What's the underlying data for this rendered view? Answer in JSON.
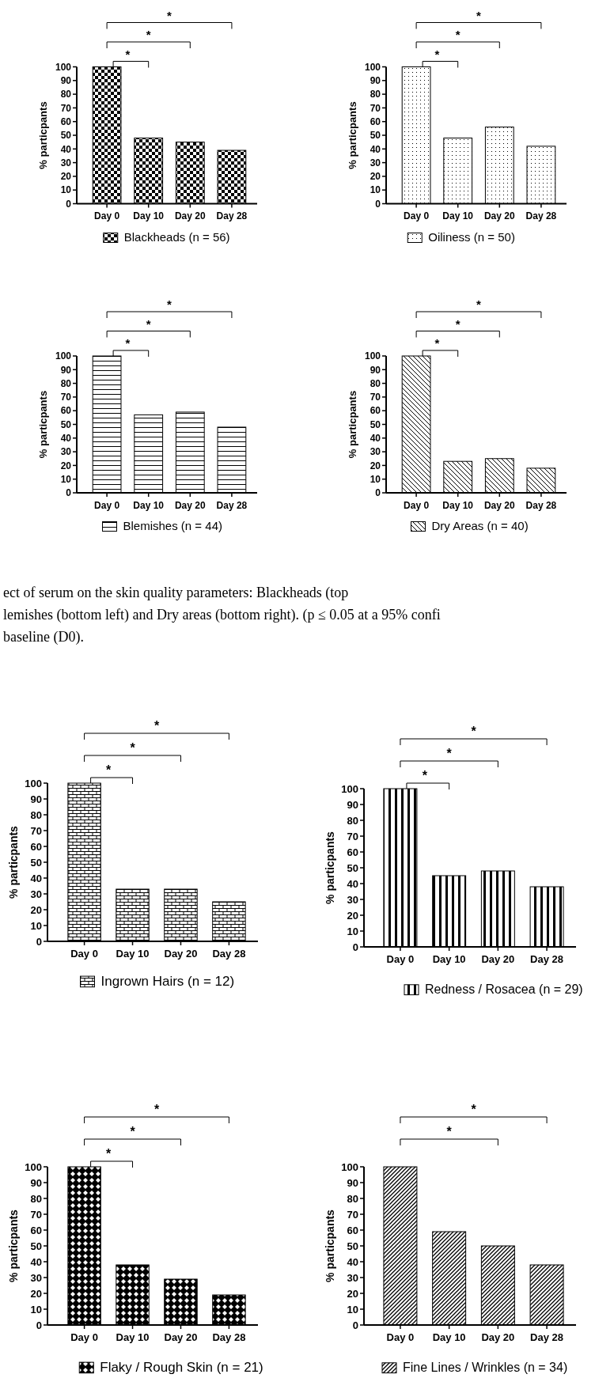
{
  "chart_data": [
    {
      "type": "bar",
      "ylabel": "% particpants",
      "categories": [
        "Day 0",
        "Day 10",
        "Day 20",
        "Day 28"
      ],
      "series": [
        {
          "name": "Blackheads (n = 56)",
          "color": "#000000",
          "values": [
            100,
            48,
            45,
            39
          ]
        }
      ],
      "ylim": [
        0,
        100
      ],
      "yticks": [
        0,
        10,
        20,
        30,
        40,
        50,
        60,
        70,
        80,
        90,
        100
      ],
      "legend": "bottom",
      "annotations": [
        "*",
        "*",
        "*"
      ]
    },
    {
      "type": "bar",
      "ylabel": "% particpants",
      "categories": [
        "Day 0",
        "Day 10",
        "Day 20",
        "Day 28"
      ],
      "series": [
        {
          "name": "Oiliness (n = 50)",
          "color": "#000000",
          "values": [
            100,
            48,
            56,
            42
          ]
        }
      ],
      "ylim": [
        0,
        100
      ],
      "yticks": [
        0,
        10,
        20,
        30,
        40,
        50,
        60,
        70,
        80,
        90,
        100
      ],
      "legend": "bottom",
      "annotations": [
        "*",
        "*",
        "*"
      ]
    },
    {
      "type": "bar",
      "ylabel": "% particpants",
      "categories": [
        "Day 0",
        "Day 10",
        "Day 20",
        "Day 28"
      ],
      "series": [
        {
          "name": "Blemishes (n = 44)",
          "color": "#000000",
          "values": [
            100,
            57,
            59,
            48
          ]
        }
      ],
      "ylim": [
        0,
        100
      ],
      "yticks": [
        0,
        10,
        20,
        30,
        40,
        50,
        60,
        70,
        80,
        90,
        100
      ],
      "legend": "bottom",
      "annotations": [
        "*",
        "*",
        "*"
      ]
    },
    {
      "type": "bar",
      "ylabel": "% particpants",
      "categories": [
        "Day 0",
        "Day 10",
        "Day 20",
        "Day 28"
      ],
      "series": [
        {
          "name": "Dry Areas (n = 40)",
          "color": "#000000",
          "values": [
            100,
            23,
            25,
            18
          ]
        }
      ],
      "ylim": [
        0,
        100
      ],
      "yticks": [
        0,
        10,
        20,
        30,
        40,
        50,
        60,
        70,
        80,
        90,
        100
      ],
      "legend": "bottom",
      "annotations": [
        "*",
        "*",
        "*"
      ]
    },
    {
      "type": "other",
      "annotations": [
        "ect of serum on the skin quality parameters: Blackheads (top",
        "lemishes (bottom left) and Dry areas (bottom right). (p ≤ 0.05 at a 95% confi",
        "baseline (D0)."
      ]
    },
    {
      "type": "bar",
      "ylabel": "% particpants",
      "categories": [
        "Day 0",
        "Day 10",
        "Day 20",
        "Day 28"
      ],
      "series": [
        {
          "name": "Ingrown Hairs (n = 12)",
          "color": "#000000",
          "values": [
            100,
            33,
            33,
            25
          ]
        }
      ],
      "ylim": [
        0,
        100
      ],
      "yticks": [
        0,
        10,
        20,
        30,
        40,
        50,
        60,
        70,
        80,
        90,
        100
      ],
      "legend": "bottom",
      "annotations": [
        "*",
        "*",
        "*"
      ]
    },
    {
      "type": "bar",
      "ylabel": "% particpants",
      "categories": [
        "Day 0",
        "Day 10",
        "Day 20",
        "Day 28"
      ],
      "series": [
        {
          "name": "Redness / Rosacea (n = 29)",
          "color": "#000000",
          "values": [
            100,
            45,
            48,
            38
          ]
        }
      ],
      "ylim": [
        0,
        100
      ],
      "yticks": [
        0,
        10,
        20,
        30,
        40,
        50,
        60,
        70,
        80,
        90,
        100
      ],
      "legend": "bottom",
      "annotations": [
        "*",
        "*",
        "*"
      ]
    },
    {
      "type": "bar",
      "ylabel": "% particpants",
      "categories": [
        "Day 0",
        "Day 10",
        "Day 20",
        "Day 28"
      ],
      "series": [
        {
          "name": "Flaky / Rough Skin (n = 21)",
          "color": "#000000",
          "values": [
            100,
            38,
            29,
            19
          ]
        }
      ],
      "ylim": [
        0,
        100
      ],
      "yticks": [
        0,
        10,
        20,
        30,
        40,
        50,
        60,
        70,
        80,
        90,
        100
      ],
      "legend": "bottom",
      "annotations": [
        "*",
        "*",
        "*"
      ]
    },
    {
      "type": "bar",
      "ylabel": "% particpants",
      "categories": [
        "Day 0",
        "Day 10",
        "Day 20",
        "Day 28"
      ],
      "series": [
        {
          "name": "Fine Lines / Wrinkles (n = 34)",
          "color": "#000000",
          "values": [
            100,
            59,
            50,
            38
          ]
        }
      ],
      "ylim": [
        0,
        100
      ],
      "yticks": [
        0,
        10,
        20,
        30,
        40,
        50,
        60,
        70,
        80,
        90,
        100
      ],
      "legend": "bottom",
      "annotations": [
        "*",
        "*"
      ]
    }
  ]
}
